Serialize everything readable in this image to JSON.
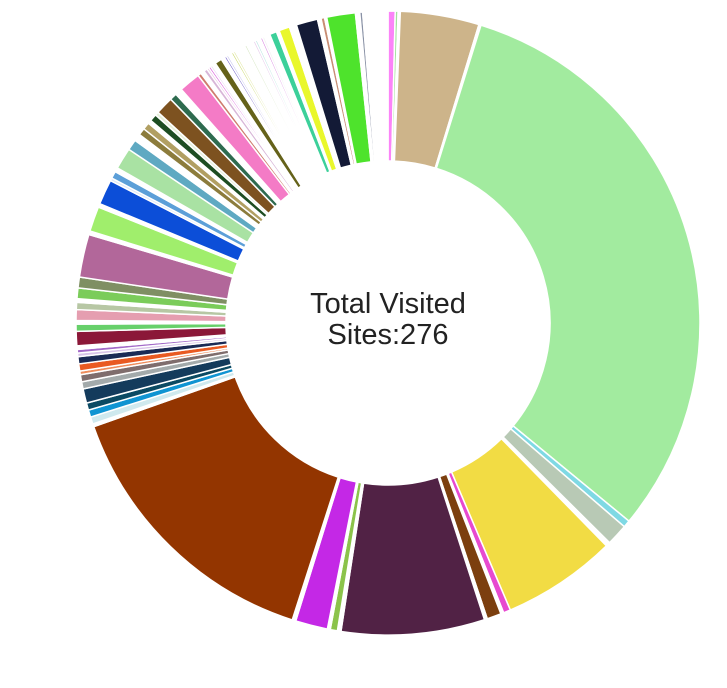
{
  "chart_data": {
    "type": "pie",
    "variant": "donut",
    "center_text": [
      "Total Visited",
      "Sites:276"
    ],
    "total": 276,
    "slices": [
      {
        "value": 1,
        "color": "#fb84f8"
      },
      {
        "value": 0.4,
        "color": "#a5e2a0"
      },
      {
        "value": 0.3,
        "color": "#ffffff"
      },
      {
        "value": 11,
        "color": "#cdb48a"
      },
      {
        "value": 0.3,
        "color": "#ffffff"
      },
      {
        "value": 84,
        "color": "#a2eb9f"
      },
      {
        "value": 1,
        "color": "#7fd9e4"
      },
      {
        "value": 3,
        "color": "#b8c9b5"
      },
      {
        "value": 0.6,
        "color": "#ffffff"
      },
      {
        "value": 16,
        "color": "#f2dc44"
      },
      {
        "value": 1,
        "color": "#e74ad0"
      },
      {
        "value": 0.4,
        "color": "#ffffff"
      },
      {
        "value": 2,
        "color": "#7c3f0f"
      },
      {
        "value": 0.4,
        "color": "#ffffff"
      },
      {
        "value": 20,
        "color": "#512245"
      },
      {
        "value": 0.5,
        "color": "#ffffff"
      },
      {
        "value": 1,
        "color": "#8bc34a"
      },
      {
        "value": 0.4,
        "color": "#ffffff"
      },
      {
        "value": 4.5,
        "color": "#c428e6"
      },
      {
        "value": 0.5,
        "color": "#ffffff"
      },
      {
        "value": 39.5,
        "color": "#933500"
      },
      {
        "value": 0.4,
        "color": "#ffffff"
      },
      {
        "value": 1,
        "color": "#cfe9ee"
      },
      {
        "value": 1,
        "color": "#0f94d2"
      },
      {
        "value": 1,
        "color": "#0b4a63"
      },
      {
        "value": 2,
        "color": "#143b5c"
      },
      {
        "value": 1,
        "color": "#a3aaab"
      },
      {
        "value": 1,
        "color": "#7f6d6d"
      },
      {
        "value": 0.5,
        "color": "#ee8c5c"
      },
      {
        "value": 1,
        "color": "#e95a22"
      },
      {
        "value": 1,
        "color": "#1a2a55"
      },
      {
        "value": 0.5,
        "color": "#d8c4e8"
      },
      {
        "value": 0.5,
        "color": "#a36ac8"
      },
      {
        "value": 0.5,
        "color": "#ffffff"
      },
      {
        "value": 2,
        "color": "#8b1838"
      },
      {
        "value": 1,
        "color": "#67d06a"
      },
      {
        "value": 0.5,
        "color": "#ffffff"
      },
      {
        "value": 1.5,
        "color": "#e59eb0"
      },
      {
        "value": 1,
        "color": "#b7c7a4"
      },
      {
        "value": 0.5,
        "color": "#ffffff"
      },
      {
        "value": 1.5,
        "color": "#7bcc5a"
      },
      {
        "value": 1.5,
        "color": "#7f8f63"
      },
      {
        "value": 6,
        "color": "#b2679a"
      },
      {
        "value": 0.5,
        "color": "#ffffff"
      },
      {
        "value": 3.5,
        "color": "#a0ee6c"
      },
      {
        "value": 0.5,
        "color": "#ffffff"
      },
      {
        "value": 3.5,
        "color": "#0c4ed8"
      },
      {
        "value": 0.4,
        "color": "#dfe8f8"
      },
      {
        "value": 1,
        "color": "#5c9fd8"
      },
      {
        "value": 0.6,
        "color": "#ffffff"
      },
      {
        "value": 3,
        "color": "#a9e2a3"
      },
      {
        "value": 1.5,
        "color": "#5fa9c2"
      },
      {
        "value": 1,
        "color": "#ffffff"
      },
      {
        "value": 1,
        "color": "#8c7c3c"
      },
      {
        "value": 1,
        "color": "#b19f62"
      },
      {
        "value": 0.5,
        "color": "#ffffff"
      },
      {
        "value": 1,
        "color": "#1d4d22"
      },
      {
        "value": 0.5,
        "color": "#e6f0da"
      },
      {
        "value": 2.5,
        "color": "#7d5220"
      },
      {
        "value": 1,
        "color": "#2e6b4f"
      },
      {
        "value": 1,
        "color": "#ffffff"
      },
      {
        "value": 3,
        "color": "#f47bc6"
      },
      {
        "value": 0.5,
        "color": "#cf7d6e"
      },
      {
        "value": 0.5,
        "color": "#ffffff"
      },
      {
        "value": 0.5,
        "color": "#d8b6d8"
      },
      {
        "value": 0.3,
        "color": "#e8c2e2"
      },
      {
        "value": 0.3,
        "color": "#d44ad8"
      },
      {
        "value": 0.3,
        "color": "#e9d7f3"
      },
      {
        "value": 0.5,
        "color": "#ffffff"
      },
      {
        "value": 1,
        "color": "#65621a"
      },
      {
        "value": 0.5,
        "color": "#ffffff"
      },
      {
        "value": 0.3,
        "color": "#6b5ac8"
      },
      {
        "value": 0.3,
        "color": "#c4c2ee"
      },
      {
        "value": 0.5,
        "color": "#ffffff"
      },
      {
        "value": 0.3,
        "color": "#ccd96a"
      },
      {
        "value": 0.3,
        "color": "#e3e8a5"
      },
      {
        "value": 1.5,
        "color": "#ffffff"
      },
      {
        "value": 0.3,
        "color": "#d8e8c6"
      },
      {
        "value": 1,
        "color": "#ffffff"
      },
      {
        "value": 0.3,
        "color": "#e5c8ea"
      },
      {
        "value": 0.3,
        "color": "#b6e4e2"
      },
      {
        "value": 0.5,
        "color": "#ffffff"
      },
      {
        "value": 0.3,
        "color": "#da8be2"
      },
      {
        "value": 0.3,
        "color": "#f0f0f0"
      },
      {
        "value": 0.8,
        "color": "#ffffff"
      },
      {
        "value": 1,
        "color": "#3cd09a"
      },
      {
        "value": 0.4,
        "color": "#ffffff"
      },
      {
        "value": 1.5,
        "color": "#e9f72c"
      },
      {
        "value": 1,
        "color": "#ffffff"
      },
      {
        "value": 3,
        "color": "#131a36"
      },
      {
        "value": 0.5,
        "color": "#ffffff"
      },
      {
        "value": 0.5,
        "color": "#c88d74"
      },
      {
        "value": 0.3,
        "color": "#ffffff"
      },
      {
        "value": 4,
        "color": "#4ee32c"
      },
      {
        "value": 0.6,
        "color": "#ffffff"
      },
      {
        "value": 0.4,
        "color": "#8a92a6"
      },
      {
        "value": 3.5,
        "color": "#ffffff"
      }
    ]
  }
}
